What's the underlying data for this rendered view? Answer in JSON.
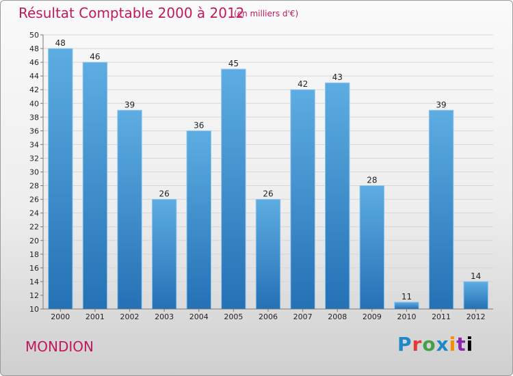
{
  "header": {
    "title": "Résultat Comptable 2000 à 2012",
    "unit": "(en milliers d'€)"
  },
  "footer": {
    "commune": "MONDION",
    "logo": [
      "P",
      "r",
      "o",
      "x",
      "i",
      "t",
      "i"
    ]
  },
  "colors": {
    "bar_top": "#5dade2",
    "bar_bottom": "#2471b5",
    "title": "#c2185b"
  },
  "chart_data": {
    "type": "bar",
    "title": "Résultat Comptable 2000 à 2012",
    "subtitle": "(en milliers d'€)",
    "xlabel": "",
    "ylabel": "",
    "categories": [
      "2000",
      "2001",
      "2002",
      "2003",
      "2004",
      "2005",
      "2006",
      "2007",
      "2008",
      "2009",
      "2010",
      "2011",
      "2012"
    ],
    "values": [
      48,
      46,
      39,
      26,
      36,
      45,
      26,
      42,
      43,
      28,
      11,
      39,
      14
    ],
    "ylim": [
      10,
      50
    ],
    "ytick_step": 2,
    "grid": true,
    "legend": "none"
  }
}
